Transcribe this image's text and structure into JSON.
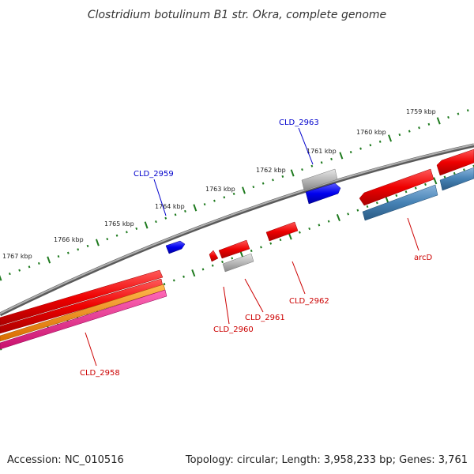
{
  "title": "Clostridium botulinum B1 str. Okra, complete genome",
  "footer": {
    "accession": "Accession: NC_010516",
    "stats": "Topology: circular; Length: 3,958,233 bp; Genes: 3,761"
  },
  "scale_labels": [
    "1759 kbp",
    "1760 kbp",
    "1761 kbp",
    "1762 kbp",
    "1763 kbp",
    "1764 kbp",
    "1765 kbp",
    "1766 kbp",
    "1767 kbp"
  ],
  "gene_labels": {
    "cld_2963": "CLD_2963",
    "cld_2959": "CLD_2959",
    "arcd": "arcD",
    "cld_2962": "CLD_2962",
    "cld_2961": "CLD_2961",
    "cld_2960": "CLD_2960",
    "cld_2958": "CLD_2958"
  },
  "colors": {
    "backbone": "#7a7a7a",
    "tick_green": "#1e7a1e",
    "forward_gene_label": "#0000cc",
    "reverse_gene_label": "#cc0000",
    "gene_red": "#ff0000",
    "gene_blue": "#0000ff",
    "gene_grey": "#b0b0b0",
    "gene_steelblue": "#4682b4",
    "orange": "#ff8c00",
    "pink": "#ff1493"
  }
}
